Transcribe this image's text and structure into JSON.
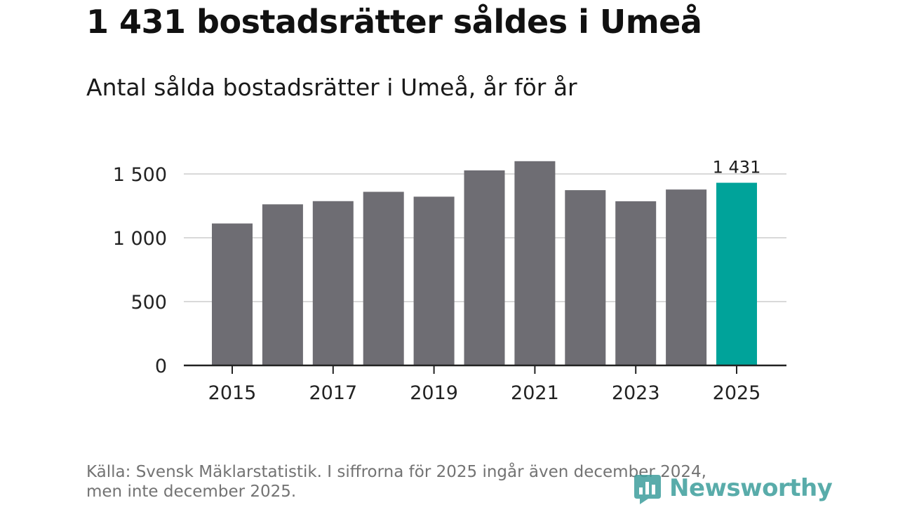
{
  "title": "1 431 bostadsrätter såldes i Umeå",
  "subtitle": "Antal sålda bostadsrätter i Umeå, år för år",
  "source": {
    "line1": "Källa: Svensk Mäklarstatistik. I siffrorna för 2025 ingår även december 2024,",
    "line2": "men inte december 2025."
  },
  "brand": {
    "name": "Newsworthy",
    "icon": "bar-chart-icon"
  },
  "colors": {
    "bar": "#6e6d73",
    "highlight": "#00a39a",
    "grid": "#d9d9d9",
    "axis": "#222222",
    "brand": "#3d9e9c"
  },
  "chart_data": {
    "type": "bar",
    "title": "1 431 bostadsrätter såldes i Umeå",
    "subtitle": "Antal sålda bostadsrätter i Umeå, år för år",
    "xlabel": "",
    "ylabel": "",
    "categories": [
      "2015",
      "2016",
      "2017",
      "2018",
      "2019",
      "2020",
      "2021",
      "2022",
      "2023",
      "2024",
      "2025"
    ],
    "values": [
      1112,
      1262,
      1287,
      1360,
      1322,
      1528,
      1600,
      1373,
      1286,
      1378,
      1431
    ],
    "highlight_category": "2025",
    "data_labels": [
      {
        "category": "2025",
        "text": "1 431"
      }
    ],
    "ylim": [
      0,
      1650
    ],
    "yticks": [
      0,
      500,
      1000,
      1500
    ],
    "ytick_labels": [
      "0",
      "500",
      "1 000",
      "1 500"
    ],
    "xtick_labels": [
      "2015",
      "2017",
      "2019",
      "2021",
      "2023",
      "2025"
    ],
    "grid": true,
    "legend": "none"
  }
}
